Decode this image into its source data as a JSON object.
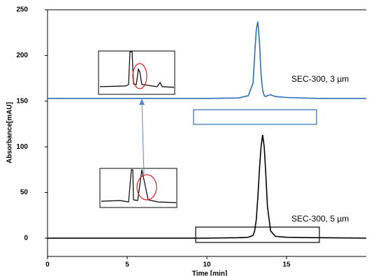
{
  "chart_data": {
    "type": "line",
    "x_label": "Time [min]",
    "y_label": "Absorbance[mAU]",
    "x": [
      0,
      5,
      10,
      12,
      12.6,
      12.9,
      13.0,
      13.1,
      13.2,
      13.3,
      13.4,
      13.5,
      13.6,
      13.7,
      13.8,
      14.0,
      14.3,
      15,
      17,
      20
    ],
    "series": [
      {
        "name": "SEC-300, 3 µm",
        "color": "#2e6db4",
        "values": [
          153,
          153,
          153,
          153.5,
          156,
          170,
          200,
          228,
          237,
          215,
          180,
          162,
          156,
          155,
          156,
          157,
          155,
          154,
          153,
          153
        ]
      },
      {
        "name": "SEC-300, 5 µm",
        "color": "#000000",
        "values": [
          0,
          0,
          0,
          0.5,
          1,
          3,
          8,
          20,
          45,
          75,
          100,
          113,
          100,
          70,
          35,
          8,
          2,
          1,
          0.5,
          0
        ]
      }
    ],
    "xlim": [
      0,
      20
    ],
    "ylim": [
      -20,
      250
    ],
    "xticks": [
      0,
      5,
      10,
      15
    ],
    "yticks": [
      0,
      50,
      100,
      150,
      200,
      250
    ]
  }
}
